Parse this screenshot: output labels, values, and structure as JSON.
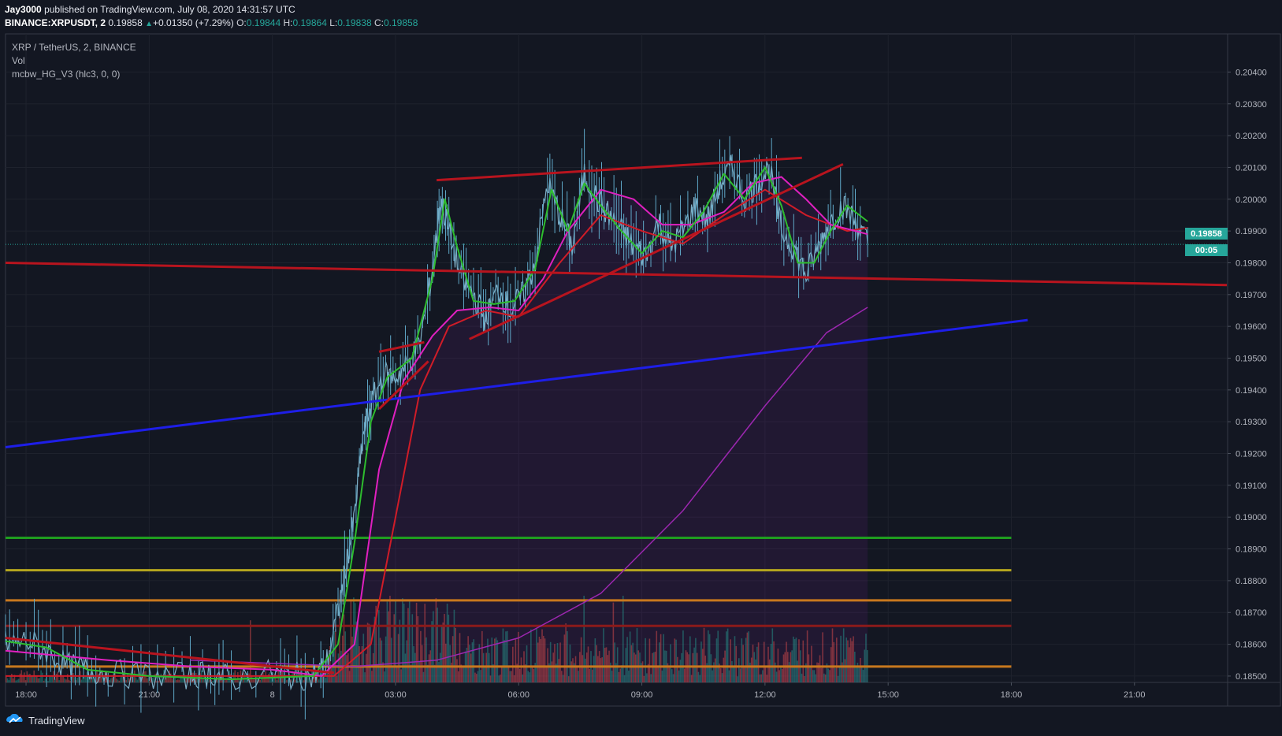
{
  "header": {
    "author": "Jay3000",
    "published": "published on TradingView.com, July 08, 2020 14:31:57 UTC",
    "symbol": "BINANCE:XRPUSDT, 2",
    "price": "0.19858",
    "change_arrow": "▲",
    "change": "+0.01350 (+7.29%)",
    "o_label": "O:",
    "o": "0.19844",
    "h_label": "H:",
    "h": "0.19864",
    "l_label": "L:",
    "l": "0.19838",
    "c_label": "C:",
    "c": "0.19858"
  },
  "legend": {
    "title": "XRP / TetherUS, 2, BINANCE",
    "vol": "Vol",
    "indicator": "mcbw_HG_V3 (hlc3, 0, 0)"
  },
  "footer": {
    "brand": "TradingView",
    "icon": "tradingview-logo-icon"
  },
  "price_tag": {
    "price": "0.19858",
    "countdown": "00:05"
  },
  "colors": {
    "background": "#131722",
    "grid": "#1e222d",
    "up": "#26a69a",
    "candle_wick": "#7fb0c7",
    "ema_fast": "#2ebd2e",
    "ema_mid": "#e020c0",
    "ema_slow": "#d01c28",
    "support_blue": "#1e1ee8",
    "level_green": "#1f9e1f",
    "level_olive": "#b4a51e",
    "level_orange": "#c8781e"
  },
  "chart_data": {
    "type": "line",
    "x_ticks": [
      "18:00",
      "21:00",
      "8",
      "03:00",
      "06:00",
      "09:00",
      "12:00",
      "15:00",
      "18:00",
      "21:00"
    ],
    "y_ticks": [
      "0.18500",
      "0.18600",
      "0.18700",
      "0.18800",
      "0.18900",
      "0.19000",
      "0.19100",
      "0.19200",
      "0.19300",
      "0.19400",
      "0.19500",
      "0.19600",
      "0.19700",
      "0.19800",
      "0.19900",
      "0.20000",
      "0.20100",
      "0.20200",
      "0.20300",
      "0.20400"
    ],
    "ylim": [
      0.1848,
      0.2052
    ],
    "xlim_hours": [
      -6.5,
      23.25
    ],
    "x_axis_note": "hours relative to 00:00 July 8 (UTC)",
    "price_series": [
      [
        -6.5,
        0.186
      ],
      [
        -6.0,
        0.1861
      ],
      [
        -5.5,
        0.1858
      ],
      [
        -5.0,
        0.1853
      ],
      [
        -4.5,
        0.1852
      ],
      [
        -4.0,
        0.1851
      ],
      [
        -3.0,
        0.185
      ],
      [
        -2.0,
        0.185
      ],
      [
        -1.5,
        0.1851
      ],
      [
        -1.0,
        0.1849
      ],
      [
        0.0,
        0.1851
      ],
      [
        0.5,
        0.185
      ],
      [
        1.0,
        0.185
      ],
      [
        1.3,
        0.1853
      ],
      [
        1.6,
        0.187
      ],
      [
        1.8,
        0.1885
      ],
      [
        2.0,
        0.19
      ],
      [
        2.2,
        0.1925
      ],
      [
        2.4,
        0.1935
      ],
      [
        2.7,
        0.1945
      ],
      [
        3.0,
        0.1944
      ],
      [
        3.3,
        0.1948
      ],
      [
        3.6,
        0.1955
      ],
      [
        3.9,
        0.1978
      ],
      [
        4.1,
        0.2
      ],
      [
        4.3,
        0.199
      ],
      [
        4.6,
        0.1975
      ],
      [
        4.9,
        0.197
      ],
      [
        5.2,
        0.1962
      ],
      [
        5.5,
        0.1972
      ],
      [
        5.8,
        0.1965
      ],
      [
        6.1,
        0.197
      ],
      [
        6.4,
        0.198
      ],
      [
        6.7,
        0.2005
      ],
      [
        7.0,
        0.1995
      ],
      [
        7.3,
        0.1985
      ],
      [
        7.6,
        0.2008
      ],
      [
        7.9,
        0.2
      ],
      [
        8.2,
        0.1995
      ],
      [
        8.5,
        0.199
      ],
      [
        8.8,
        0.1985
      ],
      [
        9.1,
        0.1982
      ],
      [
        9.4,
        0.1993
      ],
      [
        9.7,
        0.1985
      ],
      [
        10.0,
        0.199
      ],
      [
        10.3,
        0.1998
      ],
      [
        10.6,
        0.1993
      ],
      [
        10.9,
        0.2005
      ],
      [
        11.2,
        0.201
      ],
      [
        11.5,
        0.2
      ],
      [
        11.8,
        0.2005
      ],
      [
        12.1,
        0.201
      ],
      [
        12.4,
        0.199
      ],
      [
        12.7,
        0.1985
      ],
      [
        13.0,
        0.1976
      ],
      [
        13.3,
        0.1985
      ],
      [
        13.6,
        0.1993
      ],
      [
        13.9,
        0.1998
      ],
      [
        14.2,
        0.1993
      ],
      [
        14.5,
        0.1986
      ]
    ],
    "fast_ma": [
      [
        -6.5,
        0.1861
      ],
      [
        -5.5,
        0.1859
      ],
      [
        -4.5,
        0.1852
      ],
      [
        -3.0,
        0.185
      ],
      [
        -1.0,
        0.1849
      ],
      [
        1.0,
        0.185
      ],
      [
        1.6,
        0.186
      ],
      [
        2.0,
        0.1892
      ],
      [
        2.4,
        0.193
      ],
      [
        2.8,
        0.1944
      ],
      [
        3.4,
        0.195
      ],
      [
        3.9,
        0.1975
      ],
      [
        4.2,
        0.2
      ],
      [
        4.5,
        0.1985
      ],
      [
        4.9,
        0.1968
      ],
      [
        5.4,
        0.1967
      ],
      [
        5.9,
        0.1968
      ],
      [
        6.4,
        0.1978
      ],
      [
        6.8,
        0.2003
      ],
      [
        7.2,
        0.199
      ],
      [
        7.6,
        0.2005
      ],
      [
        8.0,
        0.1998
      ],
      [
        8.5,
        0.199
      ],
      [
        9.0,
        0.1983
      ],
      [
        9.5,
        0.199
      ],
      [
        10.0,
        0.1988
      ],
      [
        10.5,
        0.1996
      ],
      [
        11.0,
        0.2008
      ],
      [
        11.5,
        0.2
      ],
      [
        12.0,
        0.201
      ],
      [
        12.4,
        0.1998
      ],
      [
        12.8,
        0.198
      ],
      [
        13.2,
        0.198
      ],
      [
        13.6,
        0.199
      ],
      [
        14.0,
        0.1998
      ],
      [
        14.5,
        0.1993
      ]
    ],
    "mid_ma": [
      [
        -6.5,
        0.1858
      ],
      [
        -4.0,
        0.1855
      ],
      [
        -2.0,
        0.1853
      ],
      [
        0.0,
        0.1852
      ],
      [
        1.2,
        0.185
      ],
      [
        2.0,
        0.186
      ],
      [
        2.6,
        0.1915
      ],
      [
        3.2,
        0.1943
      ],
      [
        3.9,
        0.1957
      ],
      [
        4.5,
        0.1965
      ],
      [
        5.3,
        0.1966
      ],
      [
        6.0,
        0.1965
      ],
      [
        6.6,
        0.1975
      ],
      [
        7.2,
        0.199
      ],
      [
        8.0,
        0.2003
      ],
      [
        8.8,
        0.2
      ],
      [
        9.5,
        0.1992
      ],
      [
        10.2,
        0.1992
      ],
      [
        11.0,
        0.1996
      ],
      [
        11.7,
        0.2005
      ],
      [
        12.4,
        0.2007
      ],
      [
        13.0,
        0.2
      ],
      [
        13.6,
        0.1992
      ],
      [
        14.2,
        0.199
      ],
      [
        14.5,
        0.1989
      ]
    ],
    "slow_ma": [
      [
        -6.5,
        0.185
      ],
      [
        1.5,
        0.185
      ],
      [
        2.4,
        0.186
      ],
      [
        3.0,
        0.19
      ],
      [
        3.6,
        0.194
      ],
      [
        4.3,
        0.196
      ],
      [
        5.2,
        0.1965
      ],
      [
        6.0,
        0.1963
      ],
      [
        7.0,
        0.198
      ],
      [
        8.0,
        0.1995
      ],
      [
        9.0,
        0.199
      ],
      [
        10.0,
        0.1986
      ],
      [
        11.0,
        0.1995
      ],
      [
        12.0,
        0.2003
      ],
      [
        13.0,
        0.1995
      ],
      [
        14.0,
        0.199
      ],
      [
        14.5,
        0.1991
      ]
    ],
    "parabolic_curve": [
      [
        -2.0,
        0.1855
      ],
      [
        2.0,
        0.1853
      ],
      [
        4.0,
        0.1855
      ],
      [
        6.0,
        0.1862
      ],
      [
        8.0,
        0.1876
      ],
      [
        10.0,
        0.1902
      ],
      [
        12.0,
        0.1935
      ],
      [
        13.5,
        0.1958
      ],
      [
        14.5,
        0.1966
      ]
    ],
    "trendlines": [
      {
        "name": "resistance-top",
        "color": "#b8141e",
        "points": [
          [
            4.0,
            0.2006
          ],
          [
            12.9,
            0.2013
          ]
        ]
      },
      {
        "name": "rising-wedge-support",
        "color": "#b8141e",
        "points": [
          [
            4.8,
            0.1956
          ],
          [
            13.9,
            0.2011
          ]
        ]
      },
      {
        "name": "horizontal-support",
        "color": "#b8141e",
        "points": [
          [
            -6.5,
            0.198
          ],
          [
            23.25,
            0.1973
          ]
        ]
      },
      {
        "name": "blue-uptrend",
        "color": "#1e1ee8",
        "points": [
          [
            -6.5,
            0.1922
          ],
          [
            18.4,
            0.1962
          ]
        ]
      },
      {
        "name": "early-channel-top",
        "color": "#b8141e",
        "points": [
          [
            2.6,
            0.1952
          ],
          [
            3.7,
            0.1955
          ]
        ]
      },
      {
        "name": "early-channel-bottom",
        "color": "#b8141e",
        "points": [
          [
            2.6,
            0.1934
          ],
          [
            3.8,
            0.1949
          ]
        ]
      },
      {
        "name": "early-down-line",
        "color": "#b8141e",
        "points": [
          [
            -6.5,
            0.1862
          ],
          [
            1.5,
            0.1851
          ]
        ]
      }
    ],
    "horizontal_levels": [
      {
        "name": "green-level",
        "color": "#1f9e1f",
        "value": 0.18935,
        "end_hour": 18.0
      },
      {
        "name": "olive-level",
        "color": "#b4a51e",
        "value": 0.18833,
        "end_hour": 18.0
      },
      {
        "name": "orange-level",
        "color": "#c8781e",
        "value": 0.18738,
        "end_hour": 18.0
      },
      {
        "name": "dark-red-level",
        "color": "#8b1a1a",
        "value": 0.18658,
        "end_hour": 18.0
      },
      {
        "name": "orange-low-level",
        "color": "#c8781e",
        "value": 0.1853,
        "end_hour": 18.0
      }
    ],
    "current_price": 0.19858
  }
}
